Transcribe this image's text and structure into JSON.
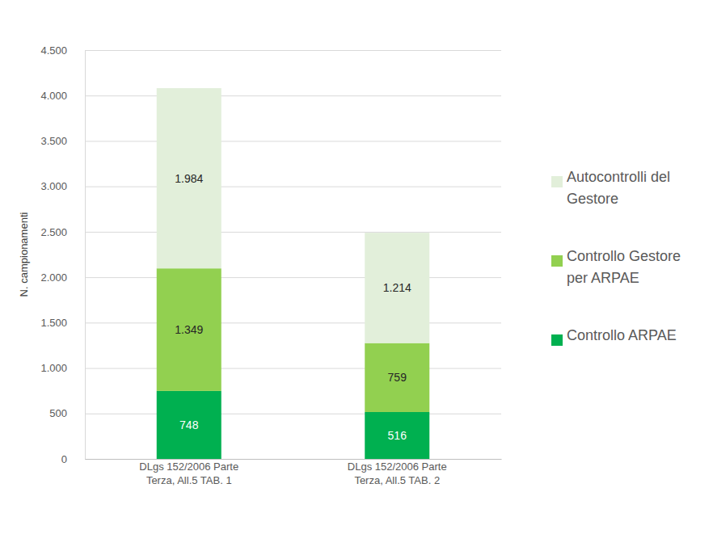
{
  "chart_data": {
    "type": "bar",
    "stacked": true,
    "data_labels": true,
    "grid": true,
    "legend": "right",
    "y_label": "N. campionamenti",
    "categories": [
      "DLgs 152/2006 Parte Terza, All.5 TAB. 1",
      "DLgs 152/2006 Parte Terza, All.5 TAB. 2"
    ],
    "series": [
      {
        "name": "Controllo ARPAE",
        "color": "#00b050",
        "values": [
          748,
          516
        ],
        "value_labels": [
          "748",
          "516"
        ]
      },
      {
        "name": "Controllo Gestore per ARPAE",
        "color": "#92d050",
        "values": [
          1349,
          759
        ],
        "value_labels": [
          "1.349",
          "759"
        ]
      },
      {
        "name": "Autocontrolli del Gestore",
        "color": "#e2efda",
        "values": [
          1984,
          1214
        ],
        "value_labels": [
          "1.984",
          "1.214"
        ]
      }
    ],
    "ylim": [
      0,
      4500
    ],
    "yticks": [
      0,
      500,
      {
        "value": 1000,
        "label": "1.000"
      },
      {
        "value": 1500,
        "label": "1.500"
      },
      {
        "value": 2000,
        "label": "2.000"
      },
      {
        "value": 2500,
        "label": "2.500"
      },
      {
        "value": 3000,
        "label": "3.000"
      },
      {
        "value": 3500,
        "label": "3.500"
      },
      {
        "value": 4000,
        "label": "4.000"
      },
      {
        "value": 4500,
        "label": "4.500"
      }
    ]
  }
}
